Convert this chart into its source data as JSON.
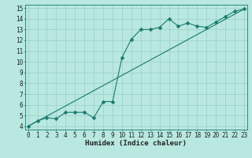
{
  "xlabel": "Humidex (Indice chaleur)",
  "xlim": [
    0,
    23
  ],
  "ylim": [
    4,
    15
  ],
  "yticks": [
    4,
    5,
    6,
    7,
    8,
    9,
    10,
    11,
    12,
    13,
    14,
    15
  ],
  "xticks": [
    0,
    1,
    2,
    3,
    4,
    5,
    6,
    7,
    8,
    9,
    10,
    11,
    12,
    13,
    14,
    15,
    16,
    17,
    18,
    19,
    20,
    21,
    22,
    23
  ],
  "line1_x": [
    0,
    1,
    2,
    3,
    4,
    5,
    6,
    7,
    8,
    9,
    10,
    11,
    12,
    13,
    14,
    15,
    16,
    17,
    18,
    19,
    20,
    21,
    22,
    23
  ],
  "line1_y": [
    4.0,
    4.5,
    4.8,
    4.7,
    5.3,
    5.3,
    5.3,
    4.8,
    6.3,
    6.3,
    10.4,
    12.1,
    13.0,
    13.0,
    13.2,
    14.0,
    13.3,
    13.6,
    13.3,
    13.2,
    13.7,
    14.2,
    14.7,
    14.9
  ],
  "line2_x": [
    0,
    23
  ],
  "line2_y": [
    4.0,
    14.9
  ],
  "color": "#1a7a6e",
  "bg_color": "#b8e8e0",
  "grid_color": "#99cfc6",
  "markersize": 2.5,
  "linewidth": 0.8,
  "xlabel_fontsize": 6.5,
  "tick_fontsize": 5.5
}
